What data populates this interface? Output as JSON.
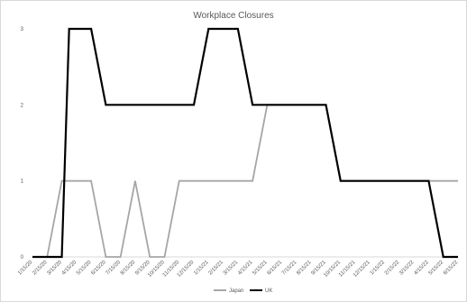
{
  "chart_data": {
    "type": "line",
    "title": "Workplace Closures",
    "xlabel": "",
    "ylabel": "",
    "categories": [
      "1/15/20",
      "2/15/20",
      "3/15/20",
      "4/15/20",
      "5/15/20",
      "6/15/20",
      "7/15/20",
      "8/15/20",
      "9/15/20",
      "10/15/20",
      "11/15/20",
      "12/15/20",
      "1/15/21",
      "2/15/21",
      "3/15/21",
      "4/15/21",
      "5/15/21",
      "6/15/21",
      "7/15/21",
      "8/15/21",
      "9/15/21",
      "10/15/21",
      "11/15/21",
      "12/15/21",
      "1/15/22",
      "2/15/22",
      "3/15/22",
      "4/15/22",
      "5/15/22",
      "6/15/22"
    ],
    "ylim": [
      0,
      3
    ],
    "yticks": [
      0,
      1,
      2,
      3
    ],
    "grid": false,
    "legend": "bottom",
    "series": [
      {
        "name": "Japan",
        "color": "#a6a6a6",
        "values": [
          [
            0,
            0
          ],
          [
            1,
            0
          ],
          [
            2,
            1
          ],
          [
            3,
            1
          ],
          [
            4,
            1
          ],
          [
            5,
            0
          ],
          [
            6,
            0
          ],
          [
            7,
            1
          ],
          [
            8,
            0
          ],
          [
            9,
            0
          ],
          [
            10,
            1
          ],
          [
            11,
            1
          ],
          [
            12,
            1
          ],
          [
            13,
            1
          ],
          [
            14,
            1
          ],
          [
            15,
            1
          ],
          [
            16,
            2
          ],
          [
            17,
            2
          ],
          [
            18,
            2
          ],
          [
            19,
            2
          ],
          [
            20,
            2
          ],
          [
            21,
            1
          ],
          [
            22,
            1
          ],
          [
            23,
            1
          ],
          [
            24,
            1
          ],
          [
            25,
            1
          ],
          [
            26,
            1
          ],
          [
            27,
            1
          ],
          [
            28,
            1
          ],
          [
            29,
            1
          ]
        ]
      },
      {
        "name": "UK",
        "color": "#000000",
        "values": [
          [
            0,
            0
          ],
          [
            1,
            0
          ],
          [
            2,
            0
          ],
          [
            2.5,
            3
          ],
          [
            4,
            3
          ],
          [
            5,
            2
          ],
          [
            6,
            2
          ],
          [
            7,
            2
          ],
          [
            8,
            2
          ],
          [
            9,
            2
          ],
          [
            10,
            2
          ],
          [
            11,
            2
          ],
          [
            12,
            3
          ],
          [
            14,
            3
          ],
          [
            15,
            2
          ],
          [
            16,
            2
          ],
          [
            17,
            2
          ],
          [
            18,
            2
          ],
          [
            19,
            2
          ],
          [
            20,
            2
          ],
          [
            21,
            1
          ],
          [
            22,
            1
          ],
          [
            23,
            1
          ],
          [
            24,
            1
          ],
          [
            25,
            1
          ],
          [
            26,
            1
          ],
          [
            27,
            1
          ],
          [
            28,
            0
          ],
          [
            29,
            0
          ]
        ]
      }
    ]
  }
}
